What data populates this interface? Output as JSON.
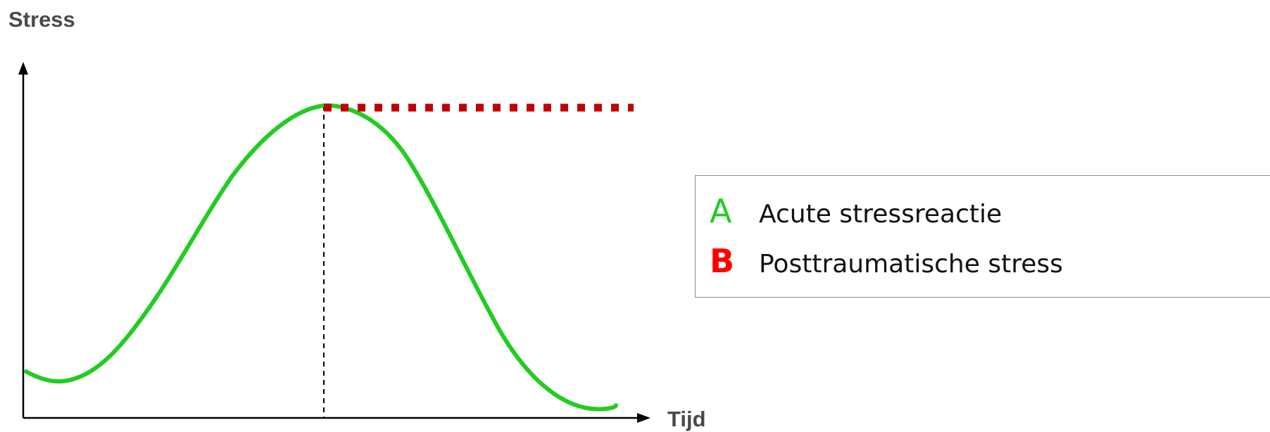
{
  "diagram": {
    "y_axis_label": "Stress",
    "x_axis_label": "Tijd",
    "legend": [
      {
        "letter": "A",
        "text": "Acute stressreactie",
        "color": "#22cc22"
      },
      {
        "letter": "B",
        "text": "Posttraumatische stress",
        "color": "#ff0000"
      }
    ],
    "colors": {
      "acute_curve": "#22cc22",
      "posttraumatic_line": "#c00000",
      "axes": "#000000",
      "marker_line": "#000000"
    }
  }
}
